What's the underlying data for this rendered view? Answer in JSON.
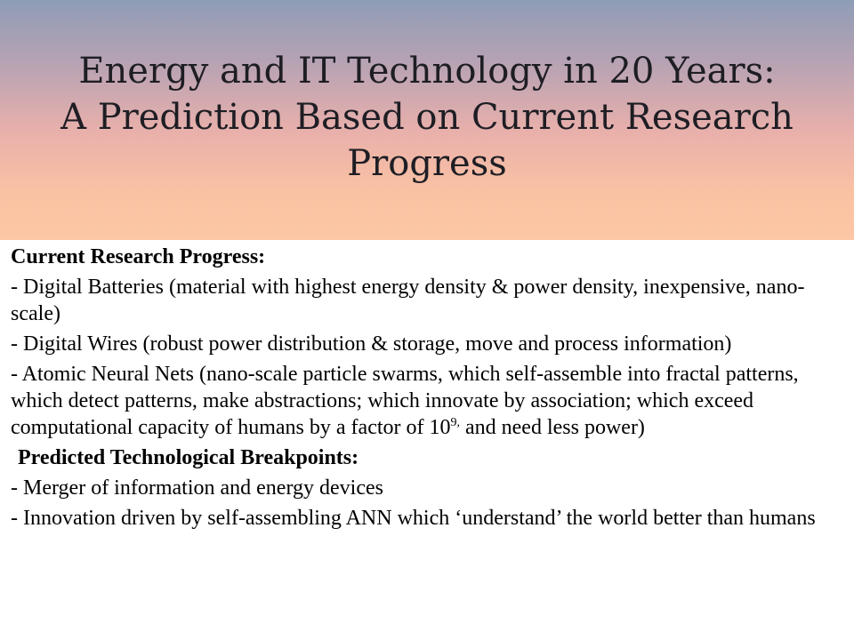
{
  "title": {
    "line1": "Energy and IT Technology in 20 Years:",
    "line2": "A Prediction Based on Current Research",
    "line3": "Progress"
  },
  "section1": {
    "heading": "Current Research Progress:",
    "items": [
      "- Digital Batteries (material with highest energy density & power density,  inexpensive,  nano-scale)",
      "- Digital Wires (robust power distribution & storage, move and process information)"
    ],
    "item3": {
      "text_before": "- Atomic Neural Nets (nano-scale particle swarms, which self-assemble into fractal patterns, which detect patterns, make abstractions; which innovate by association; which exceed computational capacity of humans by a factor of 10",
      "superscript": "9,",
      "text_after": " and need less power)"
    }
  },
  "section2": {
    "heading": "Predicted Technological Breakpoints:",
    "items": [
      "- Merger of information and energy devices",
      "- Innovation driven by self-assembling ANN which ‘understand’  the world better than humans"
    ]
  }
}
